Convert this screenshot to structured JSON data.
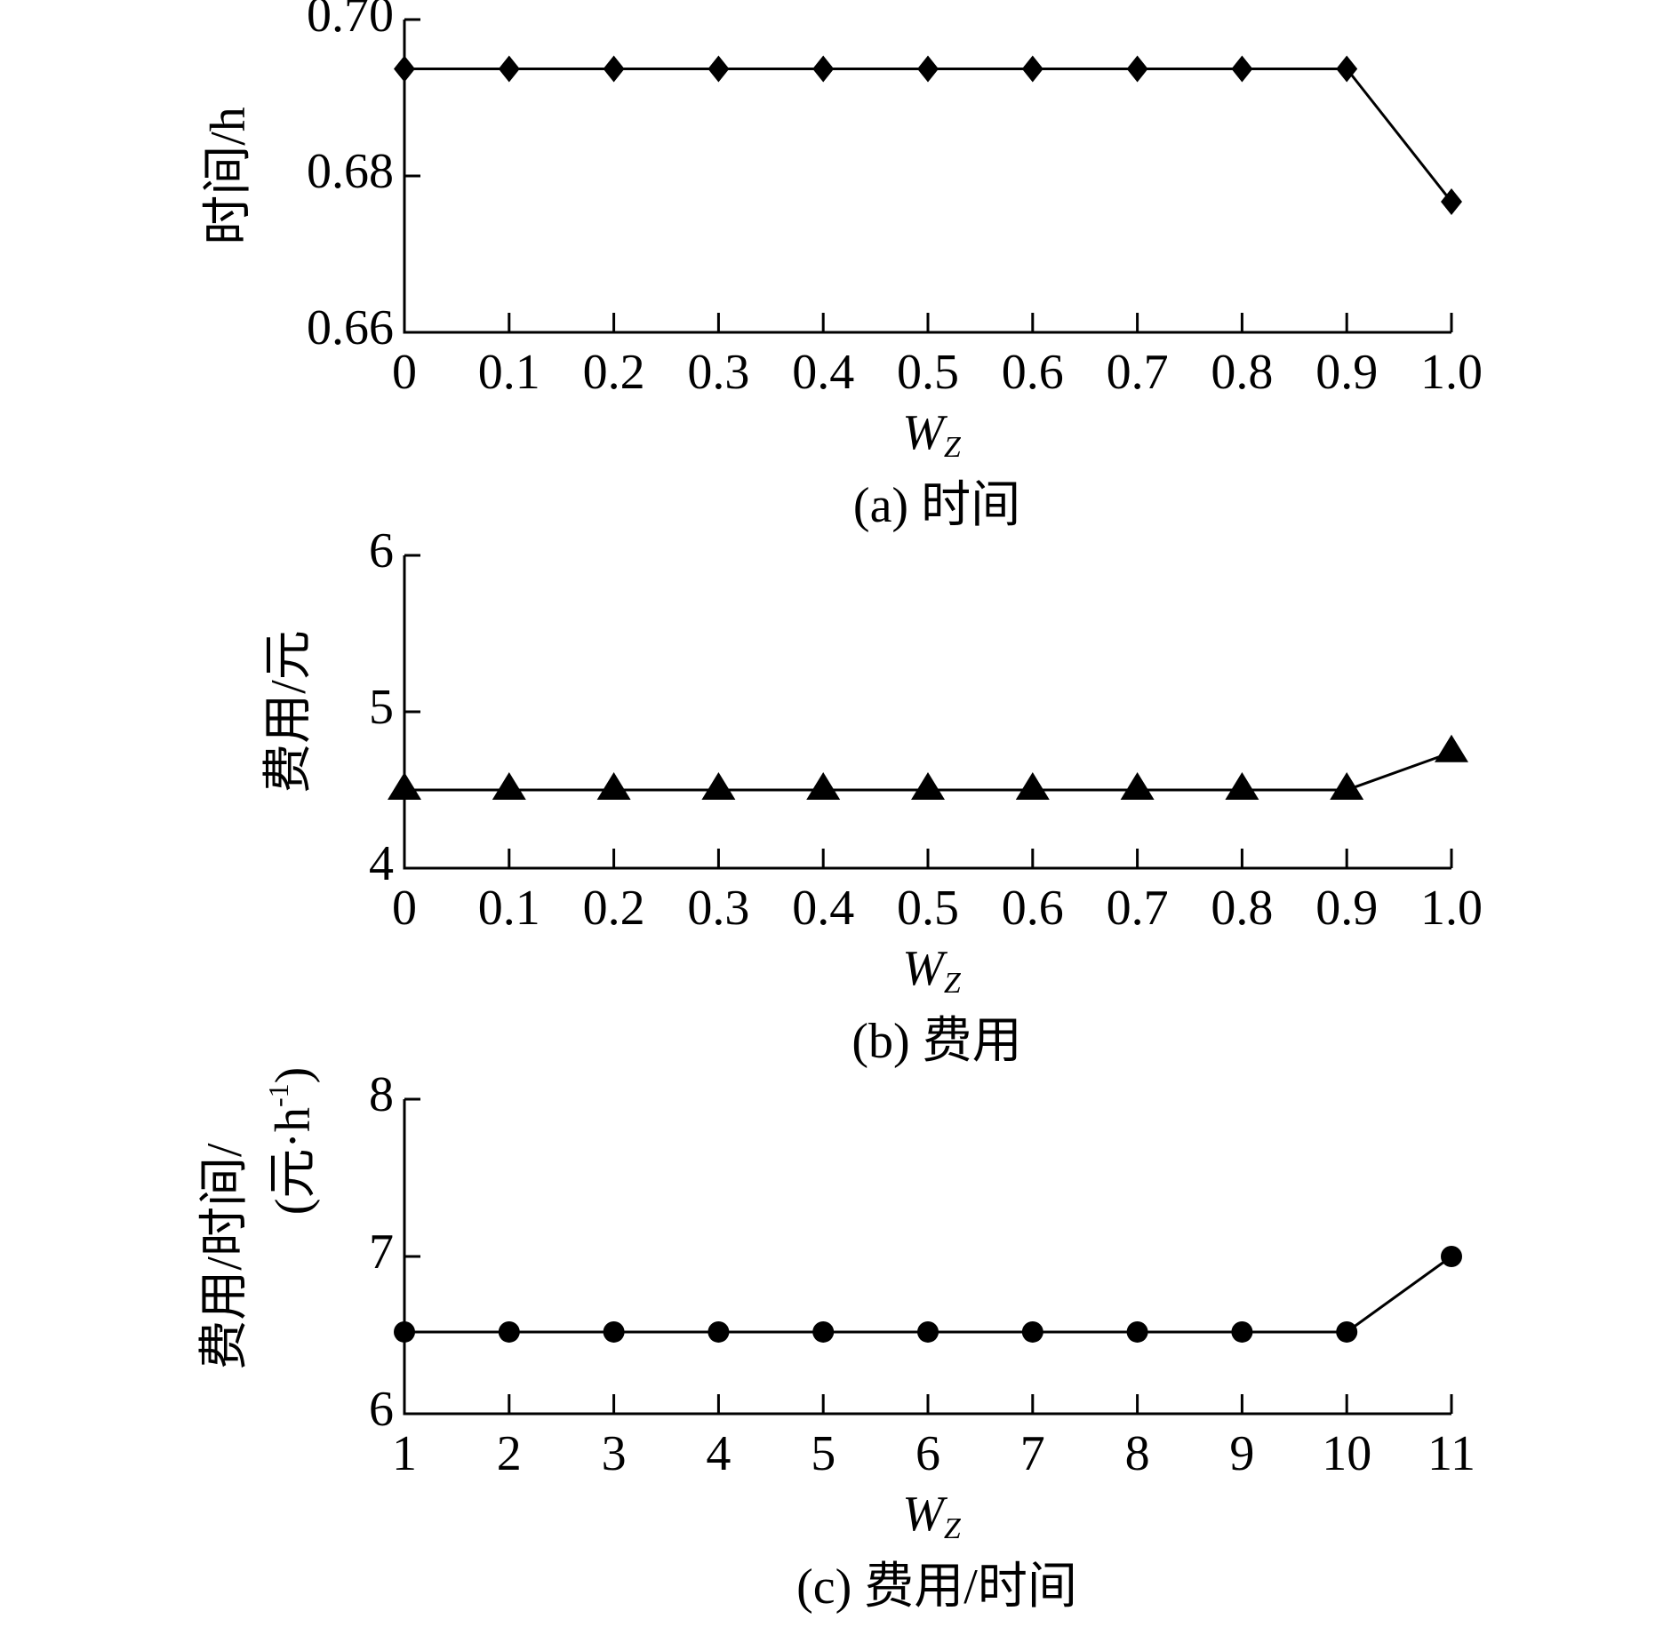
{
  "chart_data": [
    {
      "type": "line",
      "marker": "diamond",
      "color": "#000000",
      "x": [
        0,
        0.1,
        0.2,
        0.3,
        0.4,
        0.5,
        0.6,
        0.7,
        0.8,
        0.9,
        1.0
      ],
      "values": [
        0.6937,
        0.6937,
        0.6937,
        0.6937,
        0.6937,
        0.6937,
        0.6937,
        0.6937,
        0.6937,
        0.6937,
        0.6767
      ],
      "xlim": [
        0,
        1
      ],
      "xticks": [
        0,
        0.1,
        0.2,
        0.3,
        0.4,
        0.5,
        0.6,
        0.7,
        0.8,
        0.9,
        {
          "value": 1,
          "label": "1.0"
        }
      ],
      "ylim": [
        0.66,
        0.7
      ],
      "yticks": [
        {
          "value": 0.66,
          "label": "0.66"
        },
        {
          "value": 0.68,
          "label": "0.68"
        },
        {
          "value": 0.7,
          "label": "0.70"
        }
      ],
      "xlabel": "W",
      "xlabel_subscript": "Z",
      "ylabel": "时间/h",
      "caption": "(a) 时间"
    },
    {
      "type": "line",
      "marker": "triangle",
      "color": "#000000",
      "x": [
        0,
        0.1,
        0.2,
        0.3,
        0.4,
        0.5,
        0.6,
        0.7,
        0.8,
        0.9,
        1.0
      ],
      "values": [
        4.5,
        4.5,
        4.5,
        4.5,
        4.5,
        4.5,
        4.5,
        4.5,
        4.5,
        4.5,
        4.74
      ],
      "xlim": [
        0,
        1
      ],
      "xticks": [
        0,
        0.1,
        0.2,
        0.3,
        0.4,
        0.5,
        0.6,
        0.7,
        0.8,
        0.9,
        {
          "value": 1,
          "label": "1.0"
        }
      ],
      "ylim": [
        4,
        6
      ],
      "yticks": [
        4,
        5,
        6
      ],
      "xlabel": "W",
      "xlabel_subscript": "Z",
      "ylabel": "费用/元",
      "caption": "(b) 费用"
    },
    {
      "type": "line",
      "marker": "circle",
      "color": "#000000",
      "x": [
        1,
        2,
        3,
        4,
        5,
        6,
        7,
        8,
        9,
        10,
        11
      ],
      "values": [
        6.52,
        6.52,
        6.52,
        6.52,
        6.52,
        6.52,
        6.52,
        6.52,
        6.52,
        6.52,
        7.0
      ],
      "xlim": [
        1,
        11
      ],
      "xticks": [
        1,
        2,
        3,
        4,
        5,
        6,
        7,
        8,
        9,
        10,
        11
      ],
      "ylim": [
        6,
        8
      ],
      "yticks": [
        6,
        7,
        8
      ],
      "xlabel": "W",
      "xlabel_subscript": "Z",
      "ylabel": "费用/时间/",
      "ylabel_line2": "(元·h",
      "ylabel_superscript": "-1",
      "ylabel_end": ")",
      "caption": "(c) 费用/时间"
    }
  ]
}
